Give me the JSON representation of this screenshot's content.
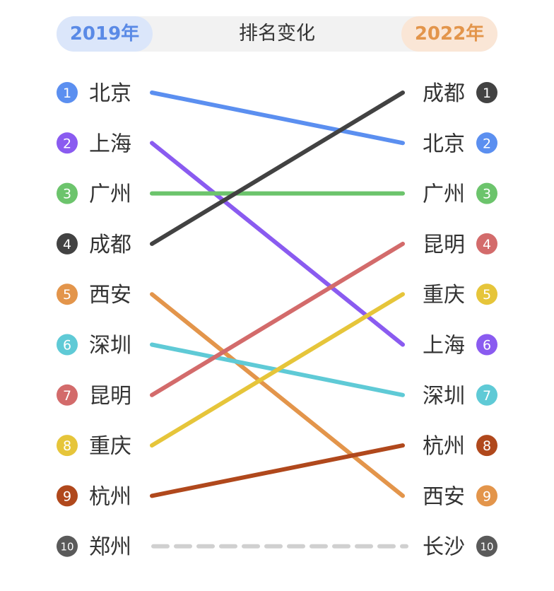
{
  "header": {
    "left_year": "2019年",
    "title": "排名变化",
    "right_year": "2022年"
  },
  "colors": {
    "header_bg": "#f2f2f2",
    "left_pill_bg": "#dbe6fa",
    "left_pill_text": "#5a8ae6",
    "right_pill_bg": "#fae6d6",
    "right_pill_text": "#e3954b",
    "dropped": "#d0d0d0"
  },
  "chart_data": {
    "type": "slope",
    "left_year": "2019年",
    "right_year": "2022年",
    "left": [
      {
        "rank": 1,
        "city": "北京",
        "color": "#5b8ff0"
      },
      {
        "rank": 2,
        "city": "上海",
        "color": "#8a5bf0"
      },
      {
        "rank": 3,
        "city": "广州",
        "color": "#6cc46c"
      },
      {
        "rank": 4,
        "city": "成都",
        "color": "#424242"
      },
      {
        "rank": 5,
        "city": "西安",
        "color": "#e3954b"
      },
      {
        "rank": 6,
        "city": "深圳",
        "color": "#5fcad6"
      },
      {
        "rank": 7,
        "city": "昆明",
        "color": "#d36b6b"
      },
      {
        "rank": 8,
        "city": "重庆",
        "color": "#e6c53a"
      },
      {
        "rank": 9,
        "city": "杭州",
        "color": "#b0481c"
      },
      {
        "rank": 10,
        "city": "郑州",
        "color": "#5a5a5a"
      }
    ],
    "right": [
      {
        "rank": 1,
        "city": "成都",
        "color": "#424242"
      },
      {
        "rank": 2,
        "city": "北京",
        "color": "#5b8ff0"
      },
      {
        "rank": 3,
        "city": "广州",
        "color": "#6cc46c"
      },
      {
        "rank": 4,
        "city": "昆明",
        "color": "#d36b6b"
      },
      {
        "rank": 5,
        "city": "重庆",
        "color": "#e6c53a"
      },
      {
        "rank": 6,
        "city": "上海",
        "color": "#8a5bf0"
      },
      {
        "rank": 7,
        "city": "深圳",
        "color": "#5fcad6"
      },
      {
        "rank": 8,
        "city": "杭州",
        "color": "#b0481c"
      },
      {
        "rank": 9,
        "city": "西安",
        "color": "#e3954b"
      },
      {
        "rank": 10,
        "city": "长沙",
        "color": "#5a5a5a"
      }
    ],
    "links": [
      {
        "city": "北京",
        "from": 1,
        "to": 2,
        "color": "#5b8ff0"
      },
      {
        "city": "上海",
        "from": 2,
        "to": 6,
        "color": "#8a5bf0"
      },
      {
        "city": "广州",
        "from": 3,
        "to": 3,
        "color": "#6cc46c"
      },
      {
        "city": "成都",
        "from": 4,
        "to": 1,
        "color": "#424242"
      },
      {
        "city": "西安",
        "from": 5,
        "to": 9,
        "color": "#e3954b"
      },
      {
        "city": "深圳",
        "from": 6,
        "to": 7,
        "color": "#5fcad6"
      },
      {
        "city": "昆明",
        "from": 7,
        "to": 4,
        "color": "#d36b6b"
      },
      {
        "city": "重庆",
        "from": 8,
        "to": 5,
        "color": "#e6c53a"
      },
      {
        "city": "杭州",
        "from": 9,
        "to": 8,
        "color": "#b0481c"
      }
    ],
    "dropped_link": {
      "from_city": "郑州",
      "to_city": "长沙",
      "rank": 10,
      "style": "dashed"
    }
  }
}
